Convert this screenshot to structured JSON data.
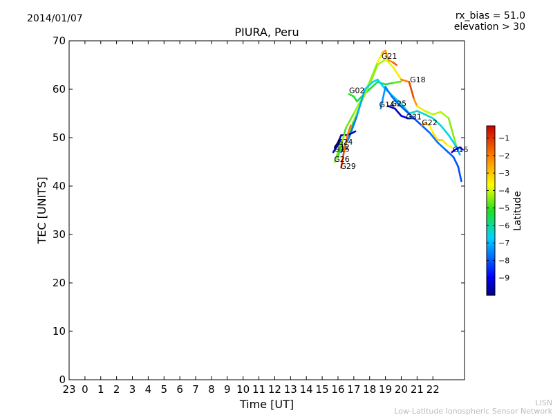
{
  "header": {
    "date": "2014/01/07",
    "rx_bias": "rx_bias = 51.0",
    "elevation": "elevation > 30"
  },
  "credit": {
    "line1": "LISN",
    "line2": "Low-Latitude Ionospheric Sensor Network"
  },
  "colorbar": {
    "label": "Latitude",
    "range": [
      -10,
      -0.3
    ],
    "ticks": [
      -1,
      -2,
      -3,
      -4,
      -5,
      -6,
      -7,
      -8,
      -9
    ]
  },
  "chart_data": {
    "type": "scatter",
    "title": "PIURA, Peru",
    "xlabel": "Time [UT]",
    "ylabel": "TEC [UNITS]",
    "xlim": [
      -1,
      24
    ],
    "ylim": [
      0,
      70
    ],
    "xtick_values": [
      -1,
      0,
      1,
      2,
      3,
      4,
      5,
      6,
      7,
      8,
      9,
      10,
      11,
      12,
      13,
      14,
      15,
      16,
      17,
      18,
      19,
      20,
      21,
      22
    ],
    "xtick_labels": [
      "23",
      "0",
      "1",
      "2",
      "3",
      "4",
      "5",
      "6",
      "7",
      "8",
      "9",
      "10",
      "11",
      "12",
      "13",
      "14",
      "15",
      "16",
      "17",
      "18",
      "19",
      "20",
      "21",
      "22"
    ],
    "yticks": [
      0,
      10,
      20,
      30,
      40,
      50,
      60,
      70
    ],
    "series": [
      {
        "name": "G02",
        "label_at": [
          16.7,
          59.2
        ],
        "points": [
          [
            16.7,
            59.0,
            -5.0
          ],
          [
            17.0,
            58.5,
            -5.2
          ],
          [
            17.2,
            57.5,
            -5.5
          ],
          [
            17.5,
            58.5,
            -5.4
          ],
          [
            18.0,
            60.0,
            -5.3
          ],
          [
            18.5,
            61.5,
            -5.5
          ],
          [
            19.0,
            61.0,
            -5.4
          ],
          [
            19.5,
            61.3,
            -5.0
          ],
          [
            20.0,
            61.6,
            -4.5
          ]
        ]
      },
      {
        "name": "G21",
        "label_at": [
          18.75,
          66.3
        ],
        "points": [
          [
            16.0,
            46.0,
            -5.2
          ],
          [
            16.5,
            52.0,
            -4.8
          ],
          [
            17.0,
            55.0,
            -4.5
          ],
          [
            17.5,
            58.0,
            -4.2
          ],
          [
            18.0,
            61.5,
            -4.6
          ],
          [
            18.5,
            65.5,
            -4.3
          ],
          [
            18.8,
            67.5,
            -2.8
          ],
          [
            19.0,
            68.0,
            -2.2
          ],
          [
            19.2,
            66.0,
            -2.6
          ],
          [
            19.5,
            65.5,
            -1.8
          ],
          [
            19.7,
            65.0,
            -1.2
          ]
        ]
      },
      {
        "name": "G18",
        "label_at": [
          20.55,
          61.4
        ],
        "points": [
          [
            16.5,
            49.0,
            -5.5
          ],
          [
            17.0,
            53.5,
            -4.5
          ],
          [
            17.5,
            57.5,
            -4.2
          ],
          [
            18.0,
            61.0,
            -4.5
          ],
          [
            18.5,
            65.0,
            -4.3
          ],
          [
            19.0,
            66.2,
            -4.2
          ],
          [
            19.5,
            64.5,
            -3.6
          ],
          [
            20.0,
            62.0,
            -3.2
          ],
          [
            20.5,
            61.5,
            -1.0
          ],
          [
            20.8,
            58.0,
            -1.5
          ],
          [
            21.0,
            56.5,
            -3.0
          ],
          [
            21.5,
            55.5,
            -3.8
          ],
          [
            22.0,
            54.8,
            -4.3
          ],
          [
            22.5,
            55.3,
            -4.0
          ],
          [
            23.0,
            54.0,
            -4.4
          ],
          [
            23.5,
            48.0,
            -4.6
          ],
          [
            23.6,
            47.5,
            -6.5
          ]
        ]
      },
      {
        "name": "G14",
        "label_at": [
          18.6,
          56.3
        ],
        "points": [
          [
            16.2,
            47.0,
            -7.5
          ],
          [
            16.7,
            50.0,
            -7.8
          ],
          [
            17.2,
            54.5,
            -7.5
          ],
          [
            17.7,
            60.0,
            -6.8
          ],
          [
            18.2,
            61.5,
            -6.5
          ],
          [
            18.5,
            62.0,
            -6.6
          ],
          [
            19.0,
            60.0,
            -6.8
          ],
          [
            19.5,
            58.5,
            -6.6
          ],
          [
            20.0,
            57.0,
            -6.4
          ],
          [
            20.5,
            55.0,
            -6.2
          ],
          [
            21.0,
            55.5,
            -6.5
          ],
          [
            21.5,
            54.8,
            -6.5
          ],
          [
            22.0,
            54.0,
            -6.2
          ],
          [
            22.5,
            52.5,
            -6.4
          ],
          [
            23.0,
            50.5,
            -6.6
          ],
          [
            23.5,
            48.0,
            -6.8
          ],
          [
            23.7,
            46.5,
            -7.2
          ]
        ]
      },
      {
        "name": "G25",
        "label_at": [
          19.35,
          56.5
        ],
        "points": [
          [
            18.7,
            56.0,
            -7.2
          ],
          [
            19.0,
            60.5,
            -7.5
          ],
          [
            19.4,
            58.5,
            -7.8
          ],
          [
            19.8,
            57.0,
            -7.9
          ],
          [
            20.3,
            55.5,
            -8.0
          ],
          [
            20.8,
            54.0,
            -8.2
          ],
          [
            21.3,
            52.5,
            -8.0
          ],
          [
            21.8,
            51.0,
            -7.8
          ],
          [
            22.3,
            49.0,
            -7.6
          ],
          [
            22.8,
            47.5,
            -7.8
          ],
          [
            23.3,
            46.0,
            -8.0
          ],
          [
            23.6,
            44.0,
            -8.1
          ],
          [
            23.8,
            41.0,
            -8.2
          ]
        ]
      },
      {
        "name": "G31",
        "label_at": [
          20.3,
          53.8
        ],
        "points": [
          [
            19.2,
            56.5,
            -9.2
          ],
          [
            19.6,
            56.0,
            -9.5
          ],
          [
            20.0,
            54.5,
            -9.3
          ],
          [
            20.4,
            54.0,
            -8.6
          ],
          [
            20.8,
            54.0,
            -8.2
          ]
        ]
      },
      {
        "name": "G22",
        "label_at": [
          21.3,
          52.6
        ],
        "points": [
          [
            21.3,
            52.5,
            -1.2
          ],
          [
            21.5,
            53.0,
            -2.5
          ],
          [
            21.8,
            52.5,
            -3.5
          ],
          [
            22.0,
            51.0,
            -3.8
          ],
          [
            22.3,
            49.5,
            -2.8
          ],
          [
            22.6,
            49.5,
            -3.2
          ],
          [
            22.9,
            48.5,
            -3.4
          ],
          [
            23.2,
            48.0,
            -4.0
          ]
        ]
      },
      {
        "name": "G24",
        "label_at": [
          15.95,
          48.6
        ],
        "points": [
          [
            15.8,
            48.0,
            -9.4
          ],
          [
            16.0,
            49.0,
            -9.3
          ],
          [
            16.2,
            50.5,
            -9.5
          ],
          [
            16.5,
            50.5,
            -9.6
          ],
          [
            16.8,
            50.8,
            -9.7
          ],
          [
            17.1,
            51.3,
            -9.6
          ]
        ]
      },
      {
        "name": "G15",
        "label_at": [
          15.75,
          47.1
        ],
        "points": [
          [
            15.7,
            47.0,
            -9.0
          ],
          [
            15.9,
            48.0,
            -9.5
          ],
          [
            16.1,
            49.5,
            -9.6
          ]
        ]
      },
      {
        "name": "G12",
        "label_at": [
          15.75,
          47.5
        ],
        "points": [
          [
            15.8,
            47.8,
            -8.8
          ],
          [
            16.0,
            48.5,
            -9.0
          ],
          [
            16.2,
            49.5,
            -9.2
          ]
        ]
      },
      {
        "name": "G26",
        "label_at": [
          15.75,
          45.0
        ],
        "points": [
          [
            15.8,
            45.0,
            -4.4
          ],
          [
            16.0,
            47.0,
            -4.8
          ],
          [
            16.2,
            49.0,
            -4.7
          ],
          [
            16.4,
            50.5,
            -3.8
          ]
        ]
      },
      {
        "name": "G29",
        "label_at": [
          16.15,
          43.6
        ],
        "points": [
          [
            16.2,
            43.8,
            -1.0
          ],
          [
            16.4,
            47.5,
            -1.5
          ],
          [
            16.6,
            50.5,
            -2.2
          ],
          [
            16.8,
            52.5,
            -1.8
          ]
        ]
      },
      {
        "name": "G16",
        "label_at": [
          23.25,
          47.0
        ],
        "points": [
          [
            23.2,
            47.0,
            -9.6
          ],
          [
            23.4,
            47.5,
            -9.2
          ],
          [
            23.7,
            48.0,
            -8.8
          ],
          [
            23.9,
            47.5,
            -8.5
          ]
        ]
      }
    ]
  }
}
